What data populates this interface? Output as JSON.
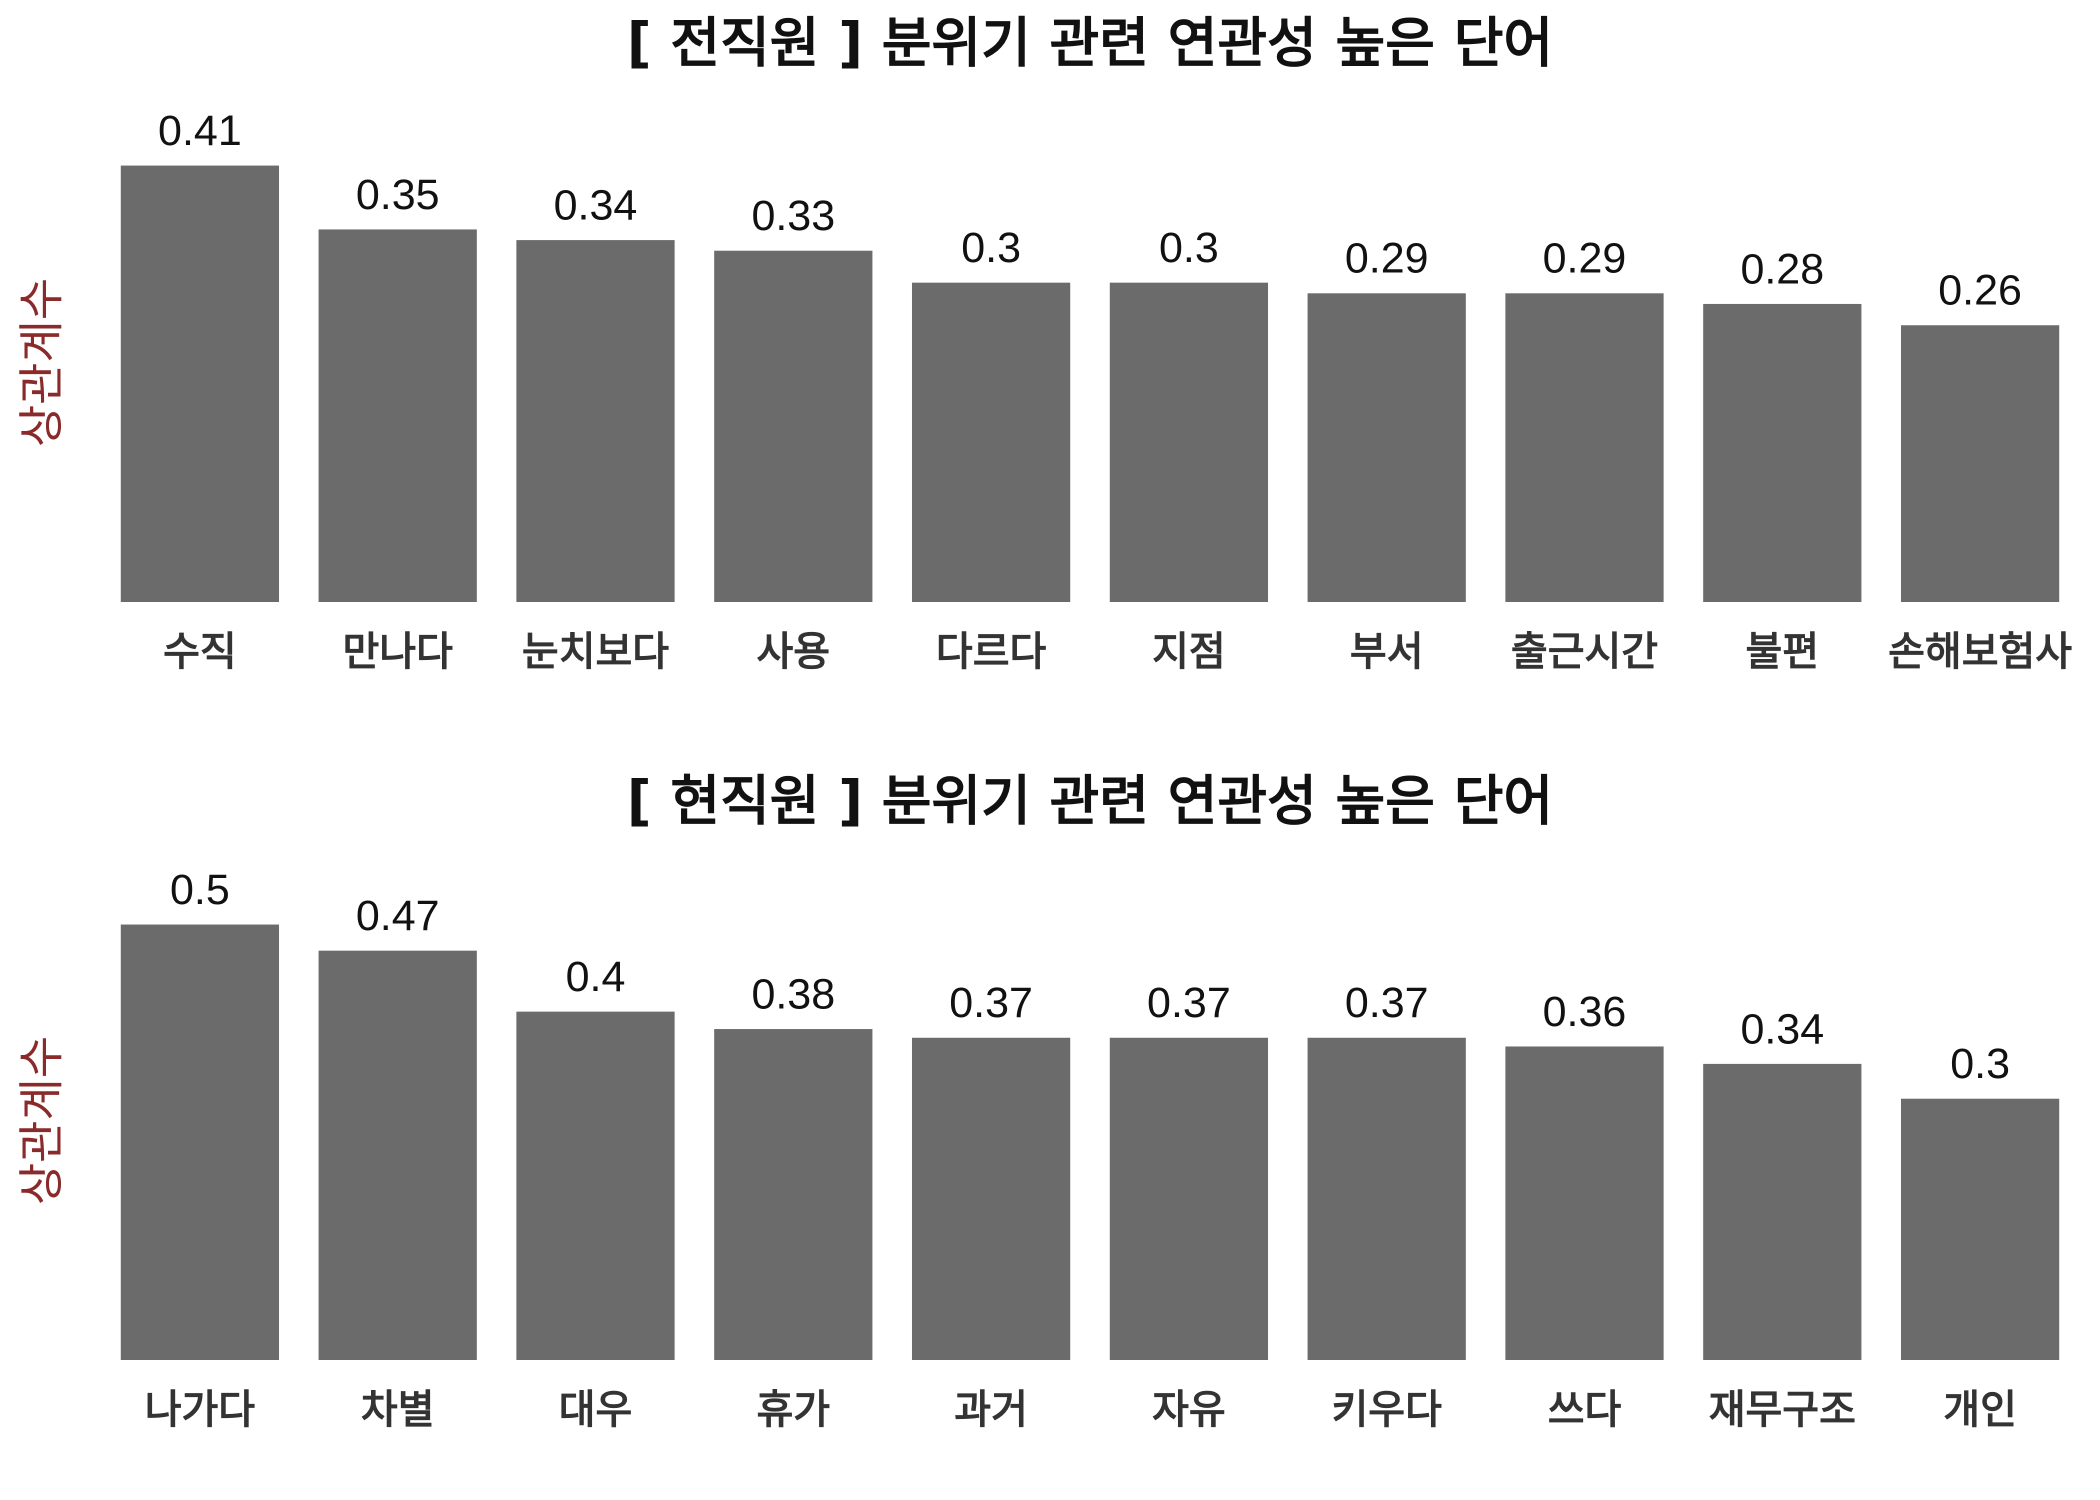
{
  "chart_data": [
    {
      "type": "bar",
      "title": "[ 전직원 ] 분위기 관련 연관성 높은 단어",
      "ylabel": "상관계수",
      "categories": [
        "수직",
        "만나다",
        "눈치보다",
        "사용",
        "다르다",
        "지점",
        "부서",
        "출근시간",
        "불편",
        "손해보험사"
      ],
      "values": [
        0.41,
        0.35,
        0.34,
        0.33,
        0.3,
        0.3,
        0.29,
        0.29,
        0.28,
        0.26
      ],
      "color": "#6b6b6b",
      "ylim": [
        0,
        0.45
      ]
    },
    {
      "type": "bar",
      "title": "[ 현직원 ] 분위기 관련 연관성 높은 단어",
      "ylabel": "상관계수",
      "categories": [
        "나가다",
        "차별",
        "대우",
        "휴가",
        "과거",
        "자유",
        "키우다",
        "쓰다",
        "재무구조",
        "개인"
      ],
      "values": [
        0.5,
        0.47,
        0.4,
        0.38,
        0.37,
        0.37,
        0.37,
        0.36,
        0.34,
        0.3
      ],
      "color": "#6b6b6b",
      "ylim": [
        0,
        0.55
      ]
    }
  ]
}
